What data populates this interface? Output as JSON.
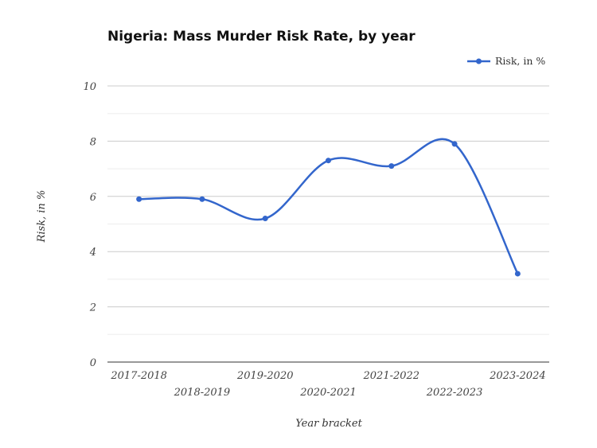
{
  "chart_data": {
    "type": "line",
    "title": "Nigeria: Mass Murder Risk Rate, by year",
    "xlabel": "Year bracket",
    "ylabel": "Risk, in %",
    "categories": [
      "2017-2018",
      "2018-2019",
      "2019-2020",
      "2020-2021",
      "2021-2022",
      "2022-2023",
      "2023-2024"
    ],
    "series": [
      {
        "name": "Risk, in %",
        "values": [
          5.9,
          5.9,
          5.2,
          7.3,
          7.1,
          7.9,
          3.2
        ],
        "color": "#3366cc"
      }
    ],
    "ylim": [
      0,
      10
    ],
    "yticks": [
      0,
      2,
      4,
      6,
      8,
      10
    ],
    "grid": true,
    "smooth": true,
    "legend_position": "top-right"
  }
}
